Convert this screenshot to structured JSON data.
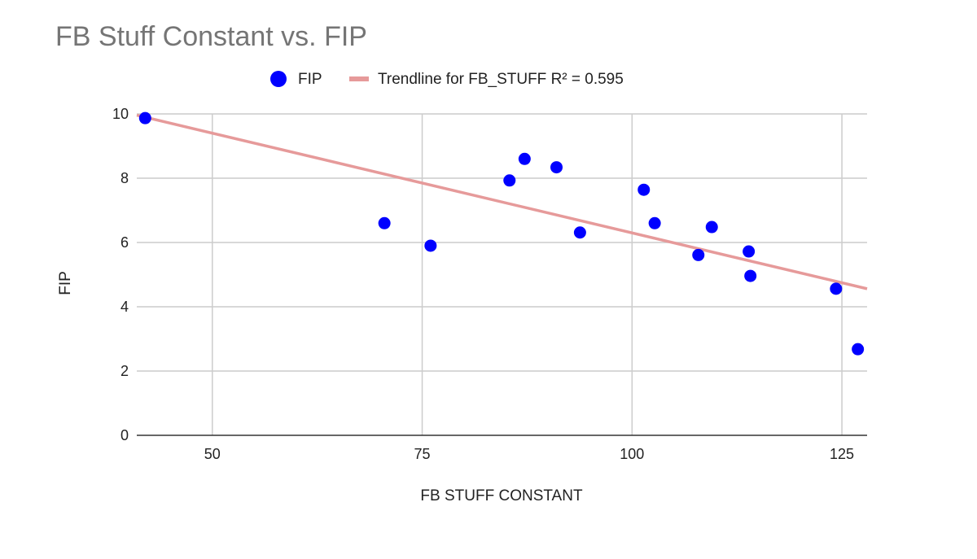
{
  "chart_data": {
    "type": "scatter",
    "title": "FB Stuff Constant vs. FIP",
    "xlabel": "FB STUFF CONSTANT",
    "ylabel": "FIP",
    "xlim": [
      41,
      128
    ],
    "ylim": [
      0,
      10
    ],
    "xticks": [
      50,
      75,
      100,
      125
    ],
    "yticks": [
      0,
      2,
      4,
      6,
      8,
      10
    ],
    "grid": true,
    "legend_position": "top",
    "series": [
      {
        "name": "FIP",
        "color": "#0000ff",
        "points": [
          {
            "x": 42.0,
            "y": 9.87
          },
          {
            "x": 70.5,
            "y": 6.6
          },
          {
            "x": 76.0,
            "y": 5.9
          },
          {
            "x": 85.4,
            "y": 7.93
          },
          {
            "x": 87.2,
            "y": 8.6
          },
          {
            "x": 91.0,
            "y": 8.34
          },
          {
            "x": 93.8,
            "y": 6.31
          },
          {
            "x": 101.4,
            "y": 7.64
          },
          {
            "x": 102.7,
            "y": 6.6
          },
          {
            "x": 107.9,
            "y": 5.61
          },
          {
            "x": 109.5,
            "y": 6.48
          },
          {
            "x": 113.9,
            "y": 5.72
          },
          {
            "x": 114.1,
            "y": 4.96
          },
          {
            "x": 124.3,
            "y": 4.56
          },
          {
            "x": 126.9,
            "y": 2.68
          }
        ]
      }
    ],
    "trendline": {
      "name": "Trendline for FB_STUFF R² = 0.595",
      "color": "#e69a9a",
      "x": [
        41,
        128
      ],
      "y": [
        9.96,
        4.56
      ]
    }
  }
}
